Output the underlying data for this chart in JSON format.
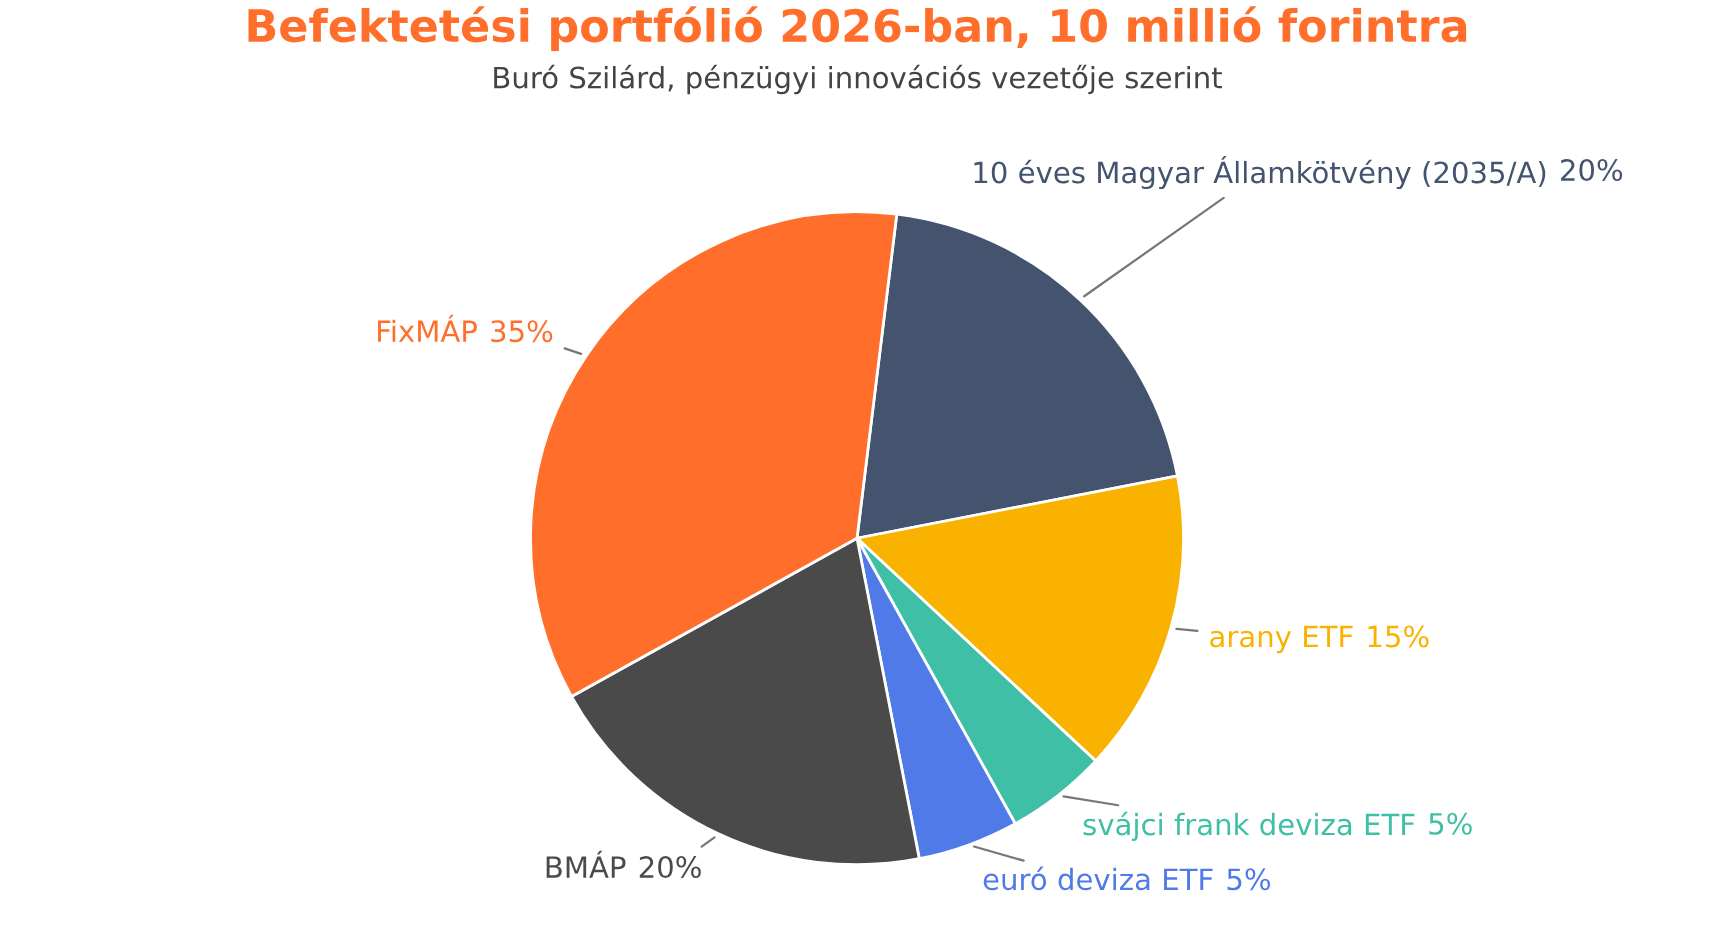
{
  "chart_data": {
    "type": "pie",
    "title": "Befektetési portfólió 2026-ban, 10 millió forintra",
    "subtitle": "Buró Szilárd, pénzügyi innovációs vezetője szerint",
    "categories": [
      "10 éves Magyar Államkötvény (2035/A)",
      "arany ETF",
      "svájci frank deviza ETF",
      "euró deviza ETF",
      "BMÁP",
      "FixMÁP"
    ],
    "values": [
      20,
      15,
      5,
      5,
      20,
      35
    ],
    "colors": [
      "#44546f",
      "#f9b200",
      "#3fbfa6",
      "#4f7ae8",
      "#4a4a4a",
      "#ff6f2b"
    ],
    "legend": false,
    "value_labels": [
      "20%",
      "15%",
      "5%",
      "5%",
      "20%",
      "35%"
    ]
  }
}
